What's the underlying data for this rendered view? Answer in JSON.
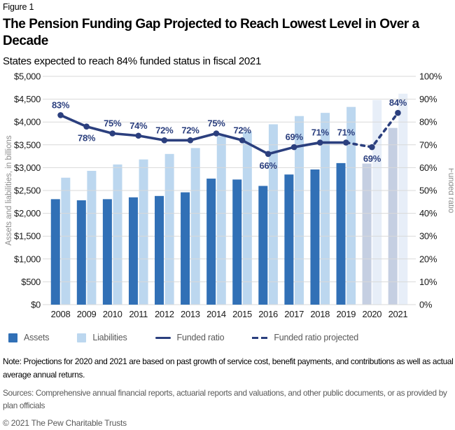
{
  "page": {
    "figure_label": "Figure 1",
    "title": "The Pension Funding Gap Projected to Reach Lowest Level in Over a Decade",
    "subtitle": "States expected to reach 84% funded status in fiscal 2021",
    "note": "Note: Projections for 2020 and 2021 are based on past growth of service cost, benefit payments, and contributions as well as actual average annual returns.",
    "sources": "Sources: Comprehensive annual financial reports, actuarial reports and valuations, and other public documents, or as provided by plan officials",
    "copyright": "© 2021 The Pew Charitable Trusts"
  },
  "legend": {
    "items": [
      {
        "label": "Assets",
        "swatch": "assets-square"
      },
      {
        "label": "Liabilities",
        "swatch": "liabilities-square"
      },
      {
        "label": "Funded ratio",
        "swatch": "solid-line"
      },
      {
        "label": "Funded ratio projected",
        "swatch": "dashed-line"
      }
    ]
  },
  "colors": {
    "assets": "#3170b6",
    "liabilities": "#bcd7ef",
    "assets_projected": "#c5cfe2",
    "liabilities_projected": "#e7eef8",
    "line": "#2b3f7e",
    "gridline": "#d9d9d9",
    "axis_text": "#1a1a1a",
    "axis_title": "#8c8c8c",
    "legend_text": "#595959",
    "footer_text": "#595959"
  },
  "chart_data": {
    "type": "bar",
    "subtype": "grouped-bar-with-line",
    "title": "",
    "categories": [
      "2008",
      "2009",
      "2010",
      "2011",
      "2012",
      "2013",
      "2014",
      "2015",
      "2016",
      "2017",
      "2018",
      "2019",
      "2020",
      "2021"
    ],
    "series": [
      {
        "name": "Assets",
        "type": "bar",
        "axis": "left",
        "values": [
          2310,
          2285,
          2310,
          2350,
          2380,
          2460,
          2760,
          2740,
          2600,
          2850,
          2960,
          3100,
          3090,
          3870
        ]
      },
      {
        "name": "Liabilities",
        "type": "bar",
        "axis": "left",
        "values": [
          2780,
          2930,
          3070,
          3180,
          3300,
          3430,
          3690,
          3790,
          3950,
          4130,
          4200,
          4330,
          4480,
          4620
        ]
      },
      {
        "name": "Funded ratio",
        "type": "line",
        "axis": "right",
        "values": [
          83,
          78,
          75,
          74,
          72,
          72,
          75,
          72,
          66,
          69,
          71,
          71,
          69,
          84
        ],
        "labels": [
          "83%",
          "78%",
          "75%",
          "74%",
          "72%",
          "72%",
          "75%",
          "72%",
          "66%",
          "69%",
          "71%",
          "71%",
          "69%",
          "84%"
        ]
      }
    ],
    "label_positions": [
      "above",
      "below",
      "above",
      "above",
      "above",
      "above",
      "above",
      "above",
      "below",
      "above",
      "above",
      "above",
      "below",
      "above"
    ],
    "projected_categories": [
      "2020",
      "2021"
    ],
    "left_axis": {
      "title": "Assets and liabilities, in billions",
      "min": 0,
      "max": 5000,
      "step": 500,
      "ticks": [
        "$5,000",
        "$4,500",
        "$4,000",
        "$3,500",
        "$3,000",
        "$2,500",
        "$2,000",
        "$1,500",
        "$1,000",
        "$500",
        "$0"
      ]
    },
    "right_axis": {
      "title": "Funded ratio",
      "min": 0,
      "max": 100,
      "step": 10,
      "ticks": [
        "100%",
        "90%",
        "80%",
        "70%",
        "60%",
        "50%",
        "40%",
        "30%",
        "20%",
        "10%",
        "0%"
      ]
    },
    "grid": "horizontal",
    "legend_position": "bottom"
  }
}
